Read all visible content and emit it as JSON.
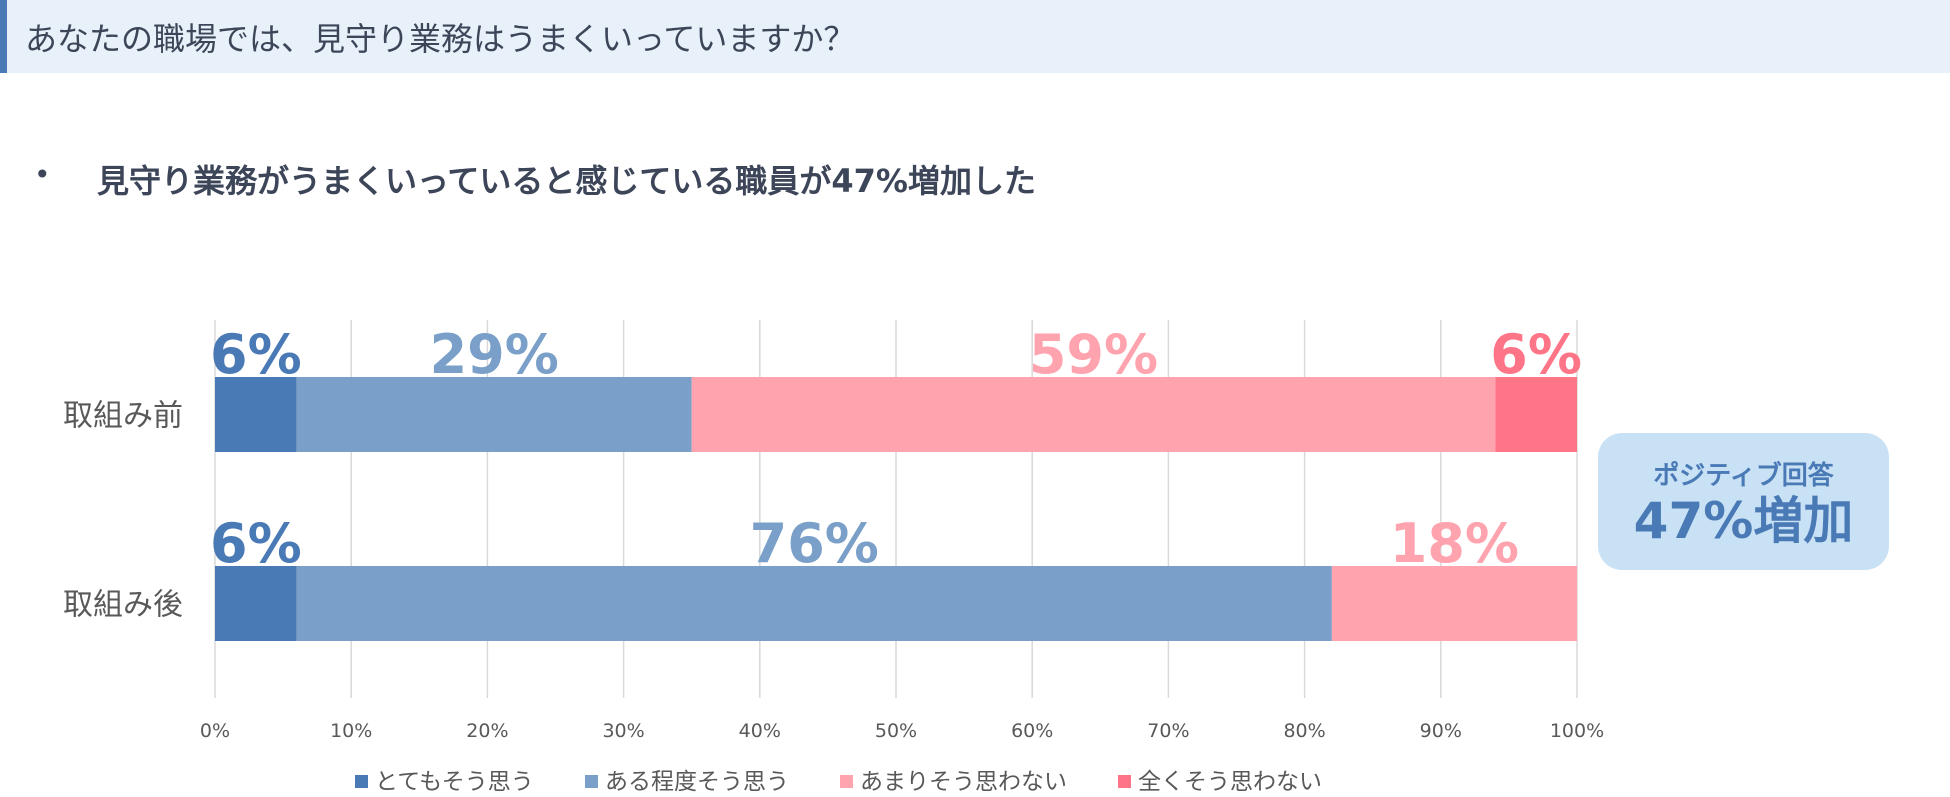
{
  "header": {
    "title": "あなたの職場では、見守り業務はうまくいっていますか？"
  },
  "headline": {
    "bullet": "•",
    "text": "見守り業務がうまくいっていると感じている職員が47%増加した"
  },
  "callout": {
    "label": "ポジティブ回答",
    "value": "47%増加"
  },
  "chart_data": {
    "type": "bar",
    "orientation": "horizontal",
    "stacked": true,
    "categories": [
      "取組み前",
      "取組み後"
    ],
    "series": [
      {
        "name": "とてもそう思う",
        "color": "#4a7ab5",
        "values": [
          6,
          6
        ],
        "labels": [
          "6%",
          "6%"
        ],
        "label_color": "#4a7ab5"
      },
      {
        "name": "ある程度そう思う",
        "color": "#7aa0c9",
        "values": [
          29,
          76
        ],
        "labels": [
          "29%",
          "76%"
        ],
        "label_color": "#7aa0c9"
      },
      {
        "name": "あまりそう思わない",
        "color": "#ffa3ae",
        "values": [
          59,
          18
        ],
        "labels": [
          "59%",
          "18%"
        ],
        "label_color": "#ffa3ae"
      },
      {
        "name": "全くそう思わない",
        "color": "#ff7588",
        "values": [
          6,
          0
        ],
        "labels": [
          "6%",
          ""
        ],
        "label_color": "#ff7588"
      }
    ],
    "xlim": [
      0,
      100
    ],
    "x_ticks": [
      "0%",
      "10%",
      "20%",
      "30%",
      "40%",
      "50%",
      "60%",
      "70%",
      "80%",
      "90%",
      "100%"
    ],
    "grid": true,
    "legend": "bottom"
  }
}
